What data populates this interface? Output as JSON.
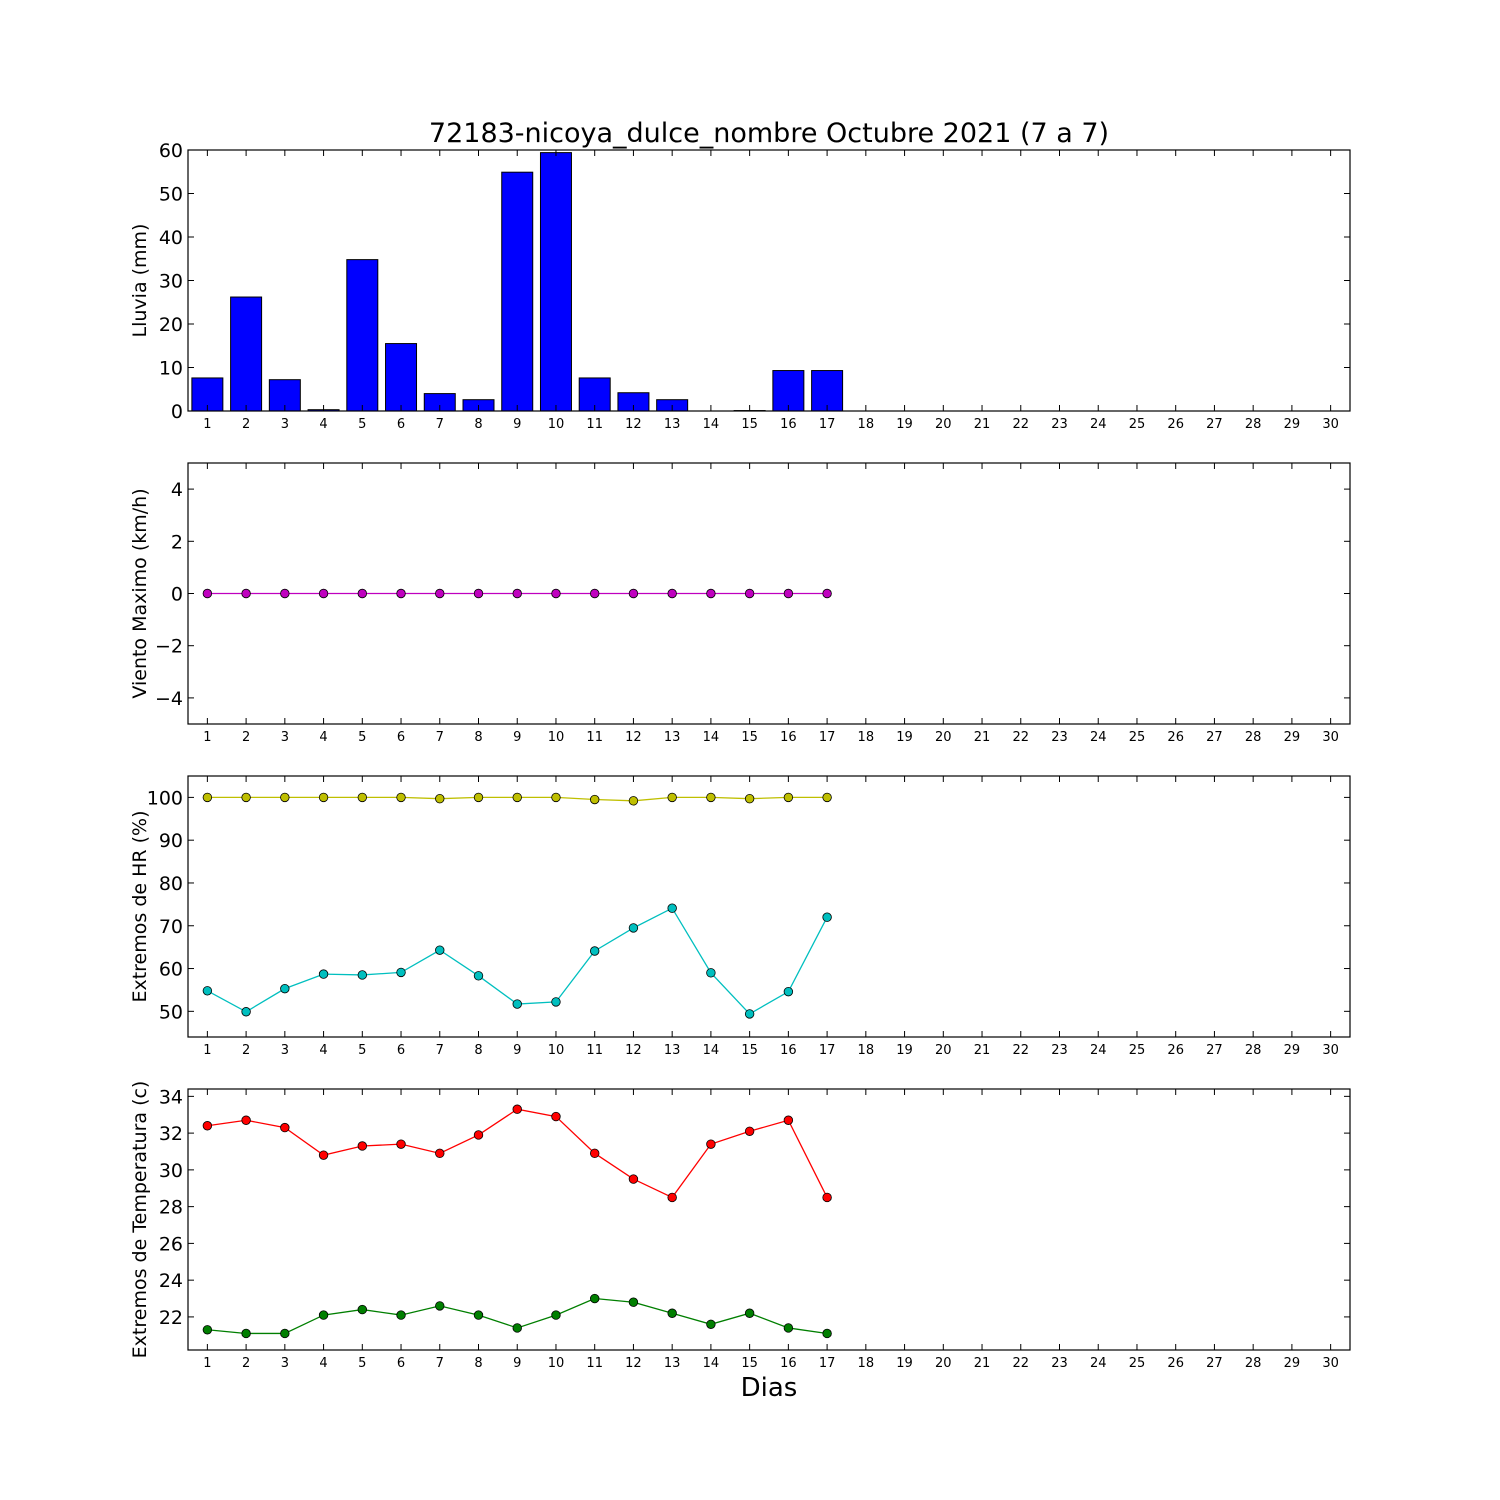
{
  "chart_data": {
    "title": "72183-nicoya_dulce_nombre Octubre 2021  (7 a 7)",
    "xlabel": "Dias",
    "days": [
      1,
      2,
      3,
      4,
      5,
      6,
      7,
      8,
      9,
      10,
      11,
      12,
      13,
      14,
      15,
      16,
      17,
      18,
      19,
      20,
      21,
      22,
      23,
      24,
      25,
      26,
      27,
      28,
      29,
      30
    ],
    "panels": [
      {
        "type": "bar",
        "ylabel": "Lluvia (mm)",
        "ylim": [
          0,
          60
        ],
        "yticks": [
          0,
          10,
          20,
          30,
          40,
          50,
          60
        ],
        "yticklabels": [
          "0",
          "10",
          "20",
          "30",
          "40",
          "50",
          "60"
        ],
        "series": [
          {
            "color": "#0000ff",
            "x": [
              1,
              2,
              3,
              4,
              5,
              6,
              7,
              8,
              9,
              10,
              11,
              12,
              13,
              14,
              15,
              16,
              17
            ],
            "values": [
              7.6,
              26.2,
              7.2,
              0.3,
              34.8,
              15.5,
              4.0,
              2.6,
              54.9,
              59.4,
              7.6,
              4.2,
              2.6,
              0.0,
              0.1,
              9.3,
              9.3
            ]
          }
        ]
      },
      {
        "type": "line",
        "ylabel": "Viento Maximo (km/h)",
        "ylim": [
          -5,
          5
        ],
        "yticks": [
          -4,
          -2,
          0,
          2,
          4
        ],
        "yticklabels": [
          "−4",
          "−2",
          "0",
          "2",
          "4"
        ],
        "series": [
          {
            "color": "#bf00bf",
            "x": [
              1,
              2,
              3,
              4,
              5,
              6,
              7,
              8,
              9,
              10,
              11,
              12,
              13,
              14,
              15,
              16,
              17
            ],
            "values": [
              0,
              0,
              0,
              0,
              0,
              0,
              0,
              0,
              0,
              0,
              0,
              0,
              0,
              0,
              0,
              0,
              0
            ]
          }
        ]
      },
      {
        "type": "line",
        "ylabel": "Extremos de HR (%)",
        "ylim": [
          44,
          105
        ],
        "yticks": [
          50,
          60,
          70,
          80,
          90,
          100
        ],
        "yticklabels": [
          "50",
          "60",
          "70",
          "80",
          "90",
          "100"
        ],
        "series": [
          {
            "color": "#bfbf00",
            "x": [
              1,
              2,
              3,
              4,
              5,
              6,
              7,
              8,
              9,
              10,
              11,
              12,
              13,
              14,
              15,
              16,
              17
            ],
            "values": [
              100,
              100,
              100,
              100,
              100,
              100,
              99.7,
              100,
              100,
              100,
              99.5,
              99.2,
              100,
              100,
              99.7,
              100,
              100
            ]
          },
          {
            "color": "#00bfbf",
            "x": [
              1,
              2,
              3,
              4,
              5,
              6,
              7,
              8,
              9,
              10,
              11,
              12,
              13,
              14,
              15,
              16,
              17
            ],
            "values": [
              54.8,
              49.9,
              55.3,
              58.7,
              58.5,
              59.1,
              64.3,
              58.3,
              51.7,
              52.2,
              64.1,
              69.5,
              74.1,
              59.0,
              49.4,
              54.6,
              72.0
            ]
          }
        ]
      },
      {
        "type": "line",
        "ylabel": "Extremos de Temperatura (c)",
        "ylim": [
          20.2,
          34.4
        ],
        "yticks": [
          22,
          24,
          26,
          28,
          30,
          32,
          34
        ],
        "yticklabels": [
          "22",
          "24",
          "26",
          "28",
          "30",
          "32",
          "34"
        ],
        "series": [
          {
            "color": "#ff0000",
            "x": [
              1,
              2,
              3,
              4,
              5,
              6,
              7,
              8,
              9,
              10,
              11,
              12,
              13,
              14,
              15,
              16,
              17
            ],
            "values": [
              32.4,
              32.7,
              32.3,
              30.8,
              31.3,
              31.4,
              30.9,
              31.9,
              33.3,
              32.9,
              30.9,
              29.5,
              28.5,
              31.4,
              32.1,
              32.7,
              28.5
            ]
          },
          {
            "color": "#007f00",
            "x": [
              1,
              2,
              3,
              4,
              5,
              6,
              7,
              8,
              9,
              10,
              11,
              12,
              13,
              14,
              15,
              16,
              17
            ],
            "values": [
              21.3,
              21.1,
              21.1,
              22.1,
              22.4,
              22.1,
              22.6,
              22.1,
              21.4,
              22.1,
              23.0,
              22.8,
              22.2,
              21.6,
              22.2,
              21.4,
              21.1
            ]
          }
        ]
      }
    ]
  }
}
